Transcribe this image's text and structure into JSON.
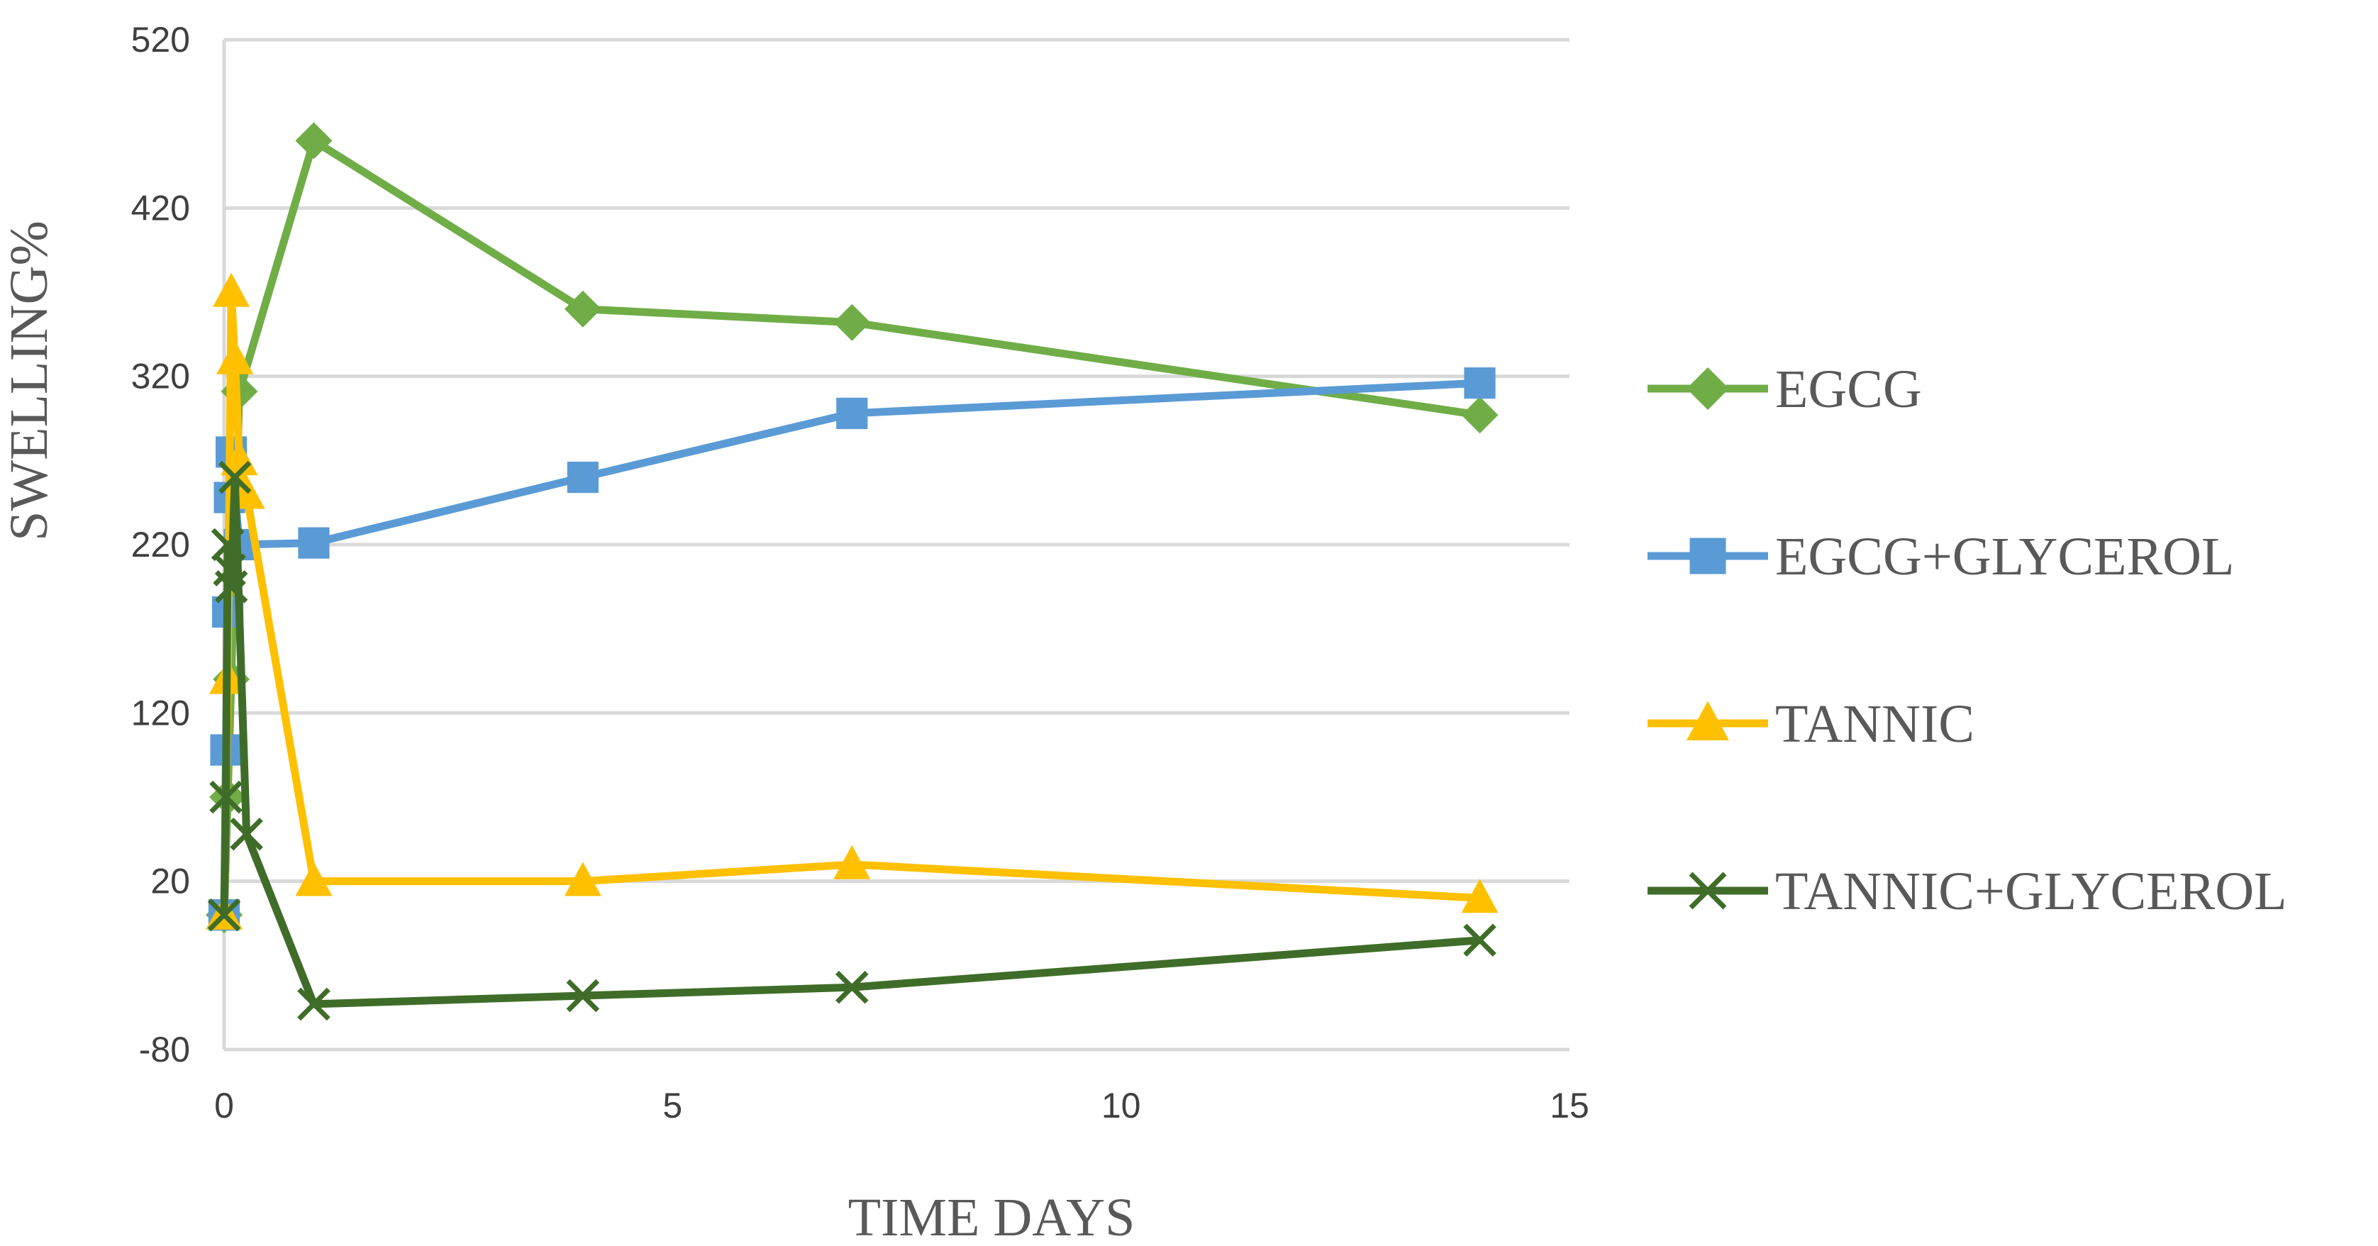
{
  "chart_data": {
    "type": "line",
    "title": "",
    "xlabel": "TIME DAYS",
    "ylabel": "SWELLING%",
    "xlim": [
      0,
      15
    ],
    "ylim": [
      -80,
      520
    ],
    "x_ticks": [
      0,
      5,
      10,
      15
    ],
    "y_ticks": [
      -80,
      20,
      120,
      220,
      320,
      420,
      520
    ],
    "grid": true,
    "legend_position": "right",
    "series": [
      {
        "name": "EGCG",
        "color": "#70ad47",
        "marker": "diamond",
        "x": [
          0,
          0.04,
          0.08,
          0.17,
          1,
          4,
          7,
          14
        ],
        "y": [
          0,
          70,
          140,
          311,
          460,
          360,
          352,
          297
        ]
      },
      {
        "name": "EGCG+GLYCEROL",
        "color": "#5b9bd5",
        "marker": "square",
        "x": [
          0,
          0.02,
          0.04,
          0.06,
          0.08,
          0.17,
          1,
          4,
          7,
          14
        ],
        "y": [
          0,
          98,
          180,
          248,
          275,
          220,
          221,
          260,
          298,
          316
        ]
      },
      {
        "name": "TANNIC",
        "color": "#ffc000",
        "marker": "triangle",
        "x": [
          0,
          0.04,
          0.08,
          0.12,
          0.17,
          0.25,
          1,
          4,
          7,
          14
        ],
        "y": [
          0,
          140,
          370,
          330,
          270,
          250,
          20,
          20,
          30,
          10
        ]
      },
      {
        "name": "TANNIC+GLYCEROL",
        "color": "#3f6d29",
        "marker": "x",
        "x": [
          0,
          0.02,
          0.04,
          0.06,
          0.08,
          0.12,
          0.25,
          1,
          4,
          7,
          14
        ],
        "y": [
          0,
          70,
          220,
          205,
          195,
          260,
          48,
          -53,
          -48,
          -43,
          -15
        ]
      }
    ]
  }
}
